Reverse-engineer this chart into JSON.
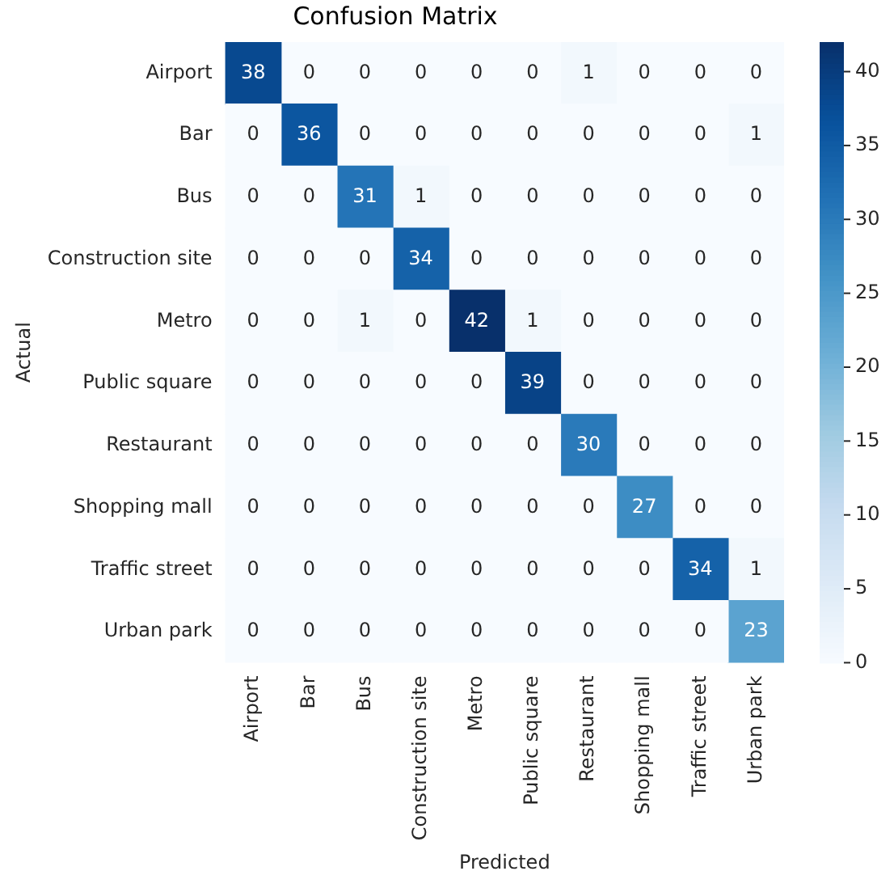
{
  "chart_data": {
    "type": "heatmap",
    "title": "Confusion Matrix",
    "xlabel": "Predicted",
    "ylabel": "Actual",
    "categories": [
      "Airport",
      "Bar",
      "Bus",
      "Construction site",
      "Metro",
      "Public square",
      "Restaurant",
      "Shopping mall",
      "Traffic street",
      "Urban park"
    ],
    "y_categories": [
      "Airport",
      "Bar",
      "Bus",
      "Construction site",
      "Metro",
      "Public square",
      "Restaurant",
      "Shopping mall",
      "Traffic street",
      "Urban park"
    ],
    "cells": [
      [
        38,
        0,
        0,
        0,
        0,
        0,
        1,
        0,
        0,
        0
      ],
      [
        0,
        36,
        0,
        0,
        0,
        0,
        0,
        0,
        0,
        1
      ],
      [
        0,
        0,
        31,
        1,
        0,
        0,
        0,
        0,
        0,
        0
      ],
      [
        0,
        0,
        0,
        34,
        0,
        0,
        0,
        0,
        0,
        0
      ],
      [
        0,
        0,
        1,
        0,
        42,
        1,
        0,
        0,
        0,
        0
      ],
      [
        0,
        0,
        0,
        0,
        0,
        39,
        0,
        0,
        0,
        0
      ],
      [
        0,
        0,
        0,
        0,
        0,
        0,
        30,
        0,
        0,
        0
      ],
      [
        0,
        0,
        0,
        0,
        0,
        0,
        0,
        27,
        0,
        0
      ],
      [
        0,
        0,
        0,
        0,
        0,
        0,
        0,
        0,
        34,
        1
      ],
      [
        0,
        0,
        0,
        0,
        0,
        0,
        0,
        0,
        0,
        23
      ]
    ],
    "clim": [
      0,
      42
    ],
    "cticks": [
      0,
      5,
      10,
      15,
      20,
      25,
      30,
      35,
      40
    ],
    "data_labels": true,
    "grid": false,
    "legend": false
  }
}
